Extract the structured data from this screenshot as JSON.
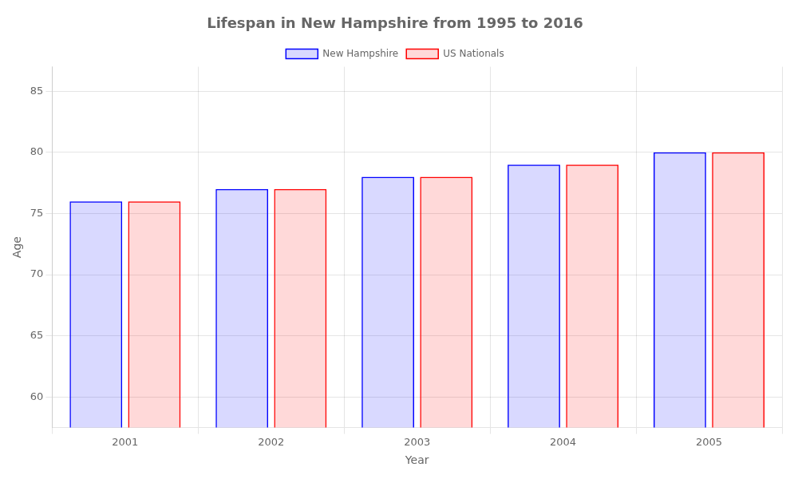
{
  "chart_data": {
    "type": "bar",
    "title": "Lifespan in New Hampshire from 1995 to 2016",
    "x_label": "Year",
    "y_label": "Age",
    "categories": [
      "2001",
      "2002",
      "2003",
      "2004",
      "2005"
    ],
    "series": [
      {
        "name": "New Hampshire",
        "color": "#0000ff",
        "values": [
          76,
          77,
          78,
          79,
          80
        ]
      },
      {
        "name": "US Nationals",
        "color": "#ff0000",
        "values": [
          76,
          77,
          78,
          79,
          80
        ]
      }
    ],
    "ylim": [
      57.5,
      87
    ],
    "yticks": [
      60,
      65,
      70,
      75,
      80,
      85
    ],
    "grid": true,
    "legend": "top"
  }
}
